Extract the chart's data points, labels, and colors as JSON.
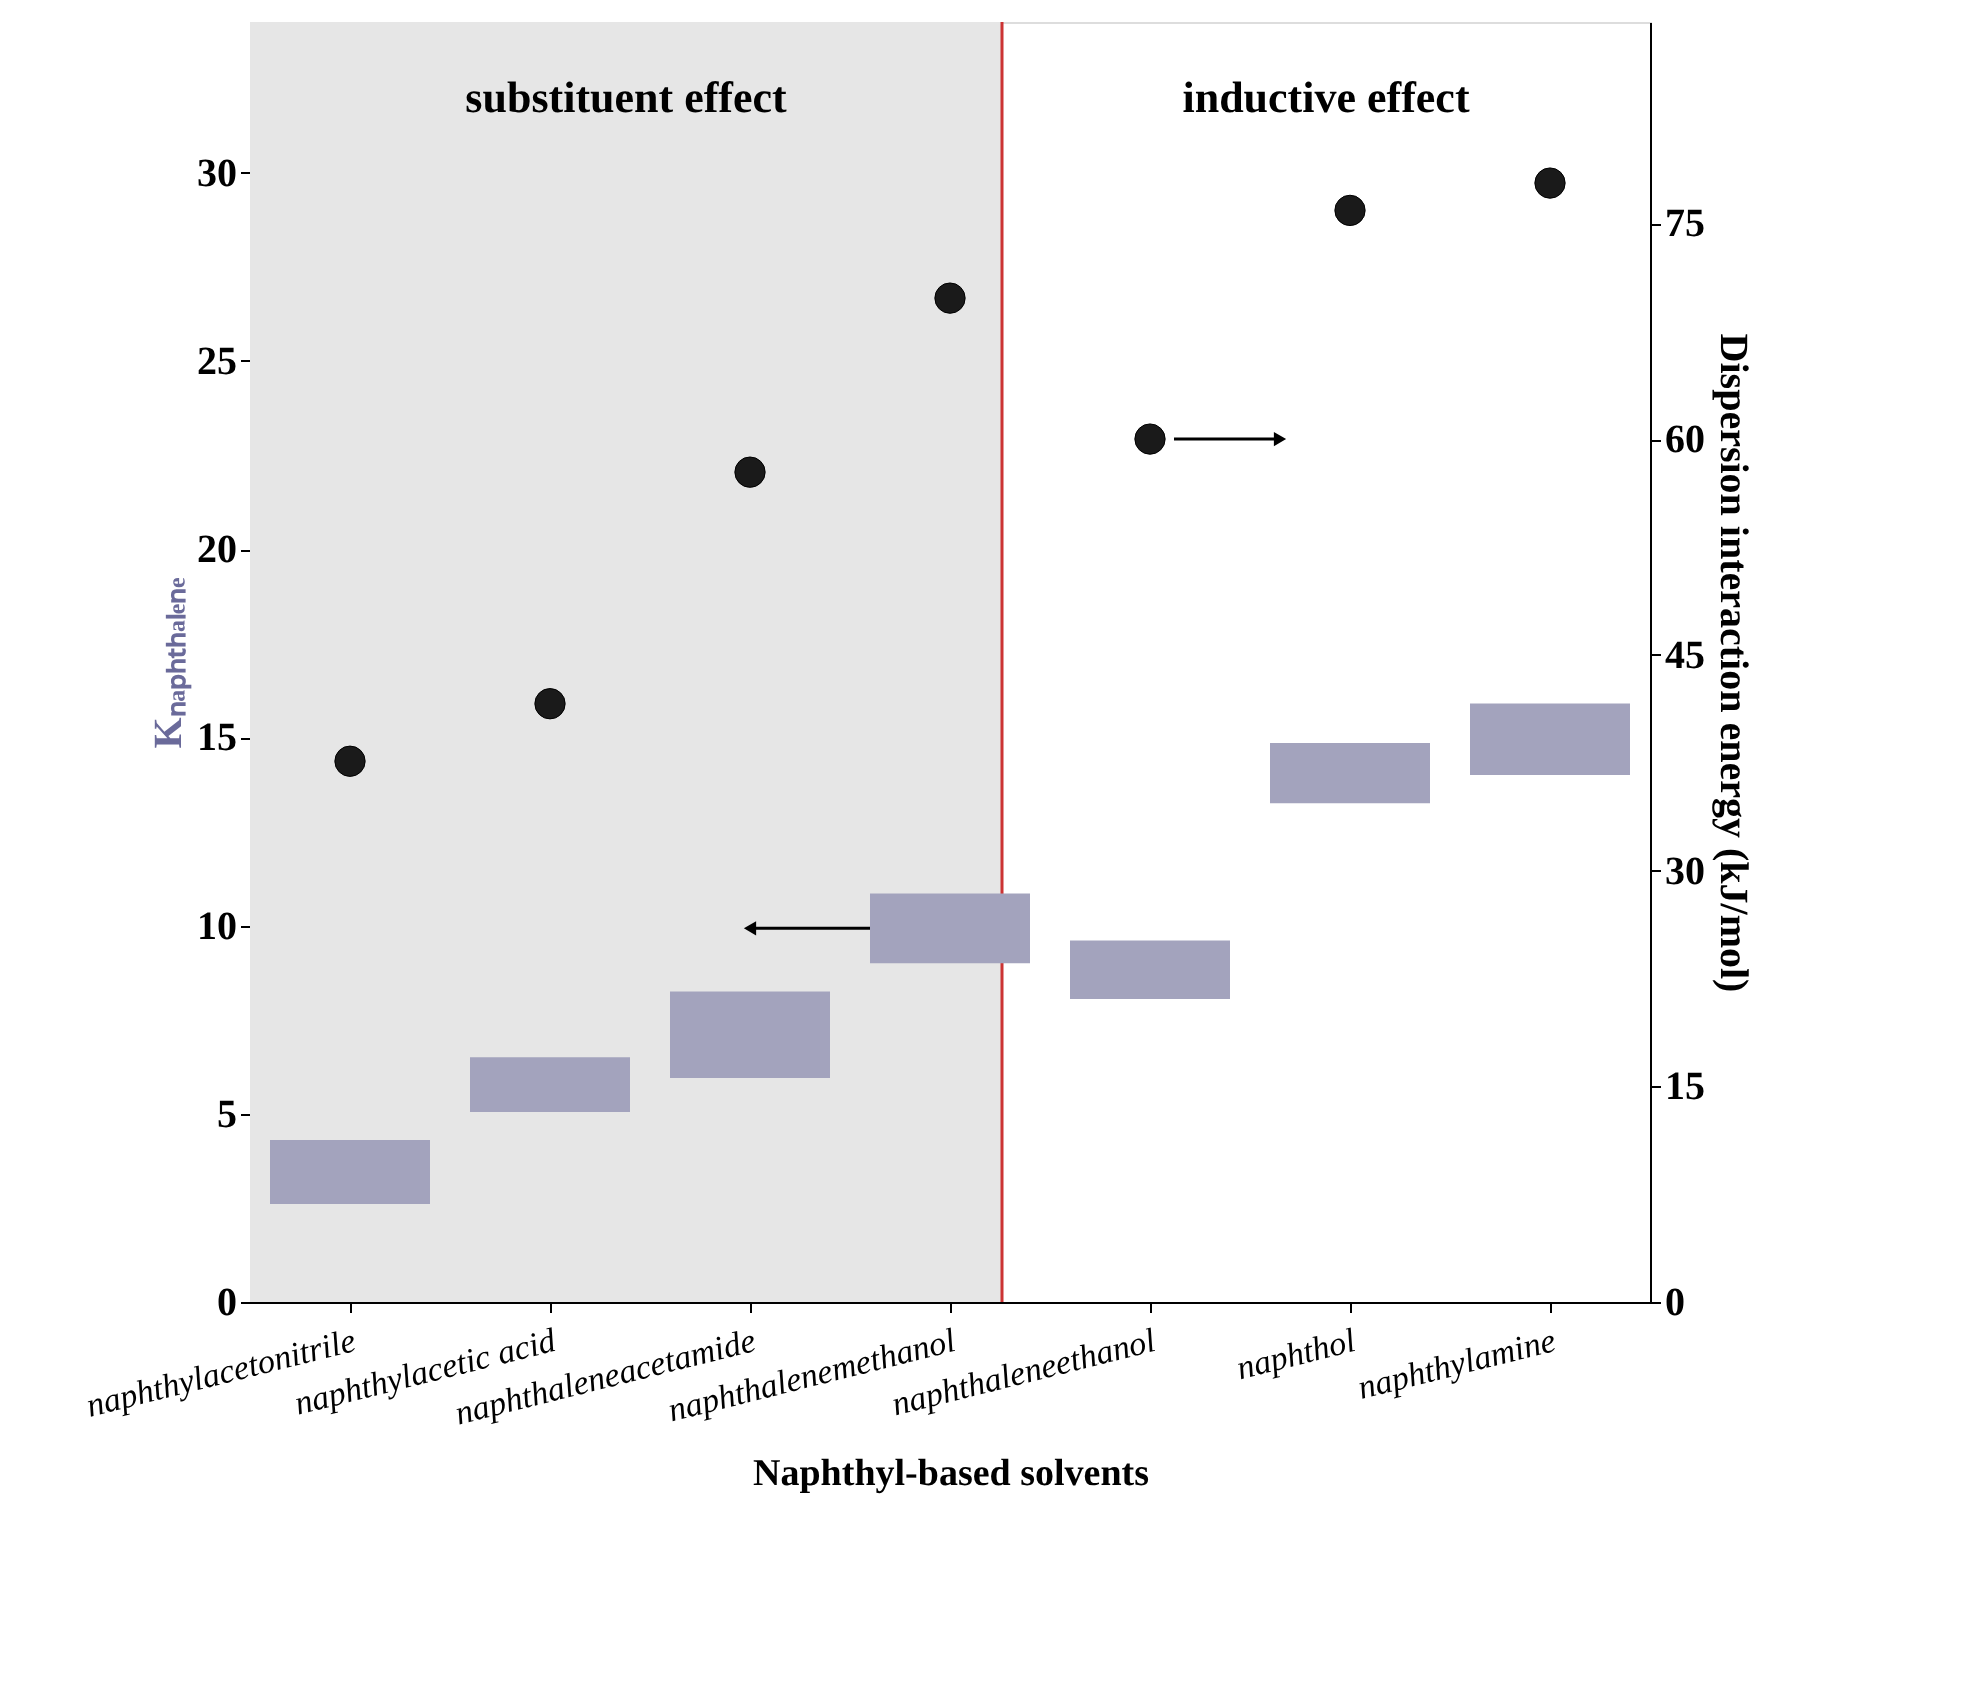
{
  "chart_data": {
    "type": "bar",
    "xlabel": "Naphthyl-based solvents",
    "ylabel": "Kₙₐₚₕₜₕₐₗₑₙₑ",
    "y2label": "Dispersion interaction energy (kJ/mol)",
    "categories": [
      "naphthylacetonitrile",
      "naphthylacetic acid",
      "naphthaleneacetamide",
      "naphthalenemethanol",
      "naphthaleneethanol",
      "naphthol",
      "naphthylamine"
    ],
    "series": [
      {
        "color": "#a3a3bd",
        "base": [
          2.6,
          5.05,
          5.95,
          9.0,
          8.05,
          13.25,
          14.0
        ],
        "values": [
          1.7,
          1.45,
          2.3,
          1.85,
          1.55,
          1.6,
          1.9
        ]
      },
      {
        "type": "scatter",
        "axis": "y2",
        "color": "#1a1a1a",
        "values": [
          37.6,
          41.6,
          57.7,
          69.8,
          60.0,
          75.9,
          77.8
        ]
      }
    ],
    "ylim": [
      0,
      34
    ],
    "yticks": [
      0,
      5,
      10,
      15,
      20,
      25,
      30
    ],
    "y2lim": [
      0,
      89
    ],
    "y2ticks": [
      0,
      15,
      30,
      45,
      60,
      75
    ],
    "bands": [
      {
        "axis": "x",
        "from": "naphthylacetonitrile",
        "to": "naphthalenemethanol",
        "color": "#e6e6e6"
      }
    ],
    "ref_lines": [
      {
        "axis": "x",
        "value": "naphthalenemethanol",
        "color": "#cc3333"
      }
    ],
    "annotations": [
      "substituent effect",
      "inductive effect"
    ],
    "marker": "circle",
    "grid": false
  }
}
